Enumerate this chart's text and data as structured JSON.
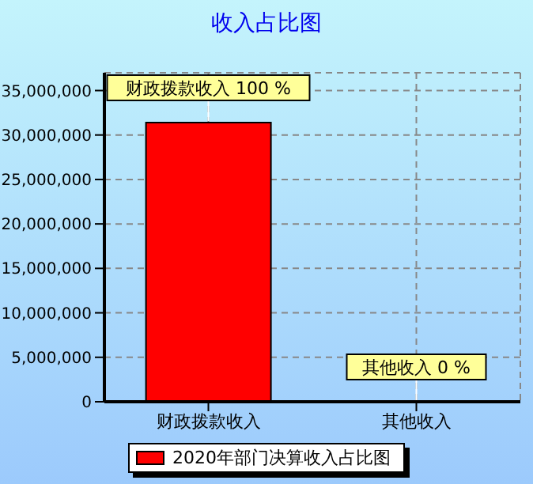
{
  "chart_data": {
    "type": "bar",
    "title": "收入占比图",
    "categories": [
      "财政拨款收入",
      "其他收入"
    ],
    "series": [
      {
        "name": "2020年部门决算收入占比图",
        "color": "#ff0000",
        "values": [
          31400000,
          0
        ]
      }
    ],
    "value_labels": [
      "财政拨款收入 100 %",
      "其他收入 0 %"
    ],
    "ylim": [
      0,
      37000000
    ],
    "yticks": [
      0,
      {
        "value": 5000000,
        "label": "5,000,000"
      },
      {
        "value": 10000000,
        "label": "10,000,000"
      },
      {
        "value": 15000000,
        "label": "15,000,000"
      },
      {
        "value": 20000000,
        "label": "20,000,000"
      },
      {
        "value": 25000000,
        "label": "25,000,000"
      },
      {
        "value": 30000000,
        "label": "30,000,000"
      },
      {
        "value": 35000000,
        "label": "35,000,000"
      }
    ],
    "grid": true,
    "legend": "bottom"
  }
}
